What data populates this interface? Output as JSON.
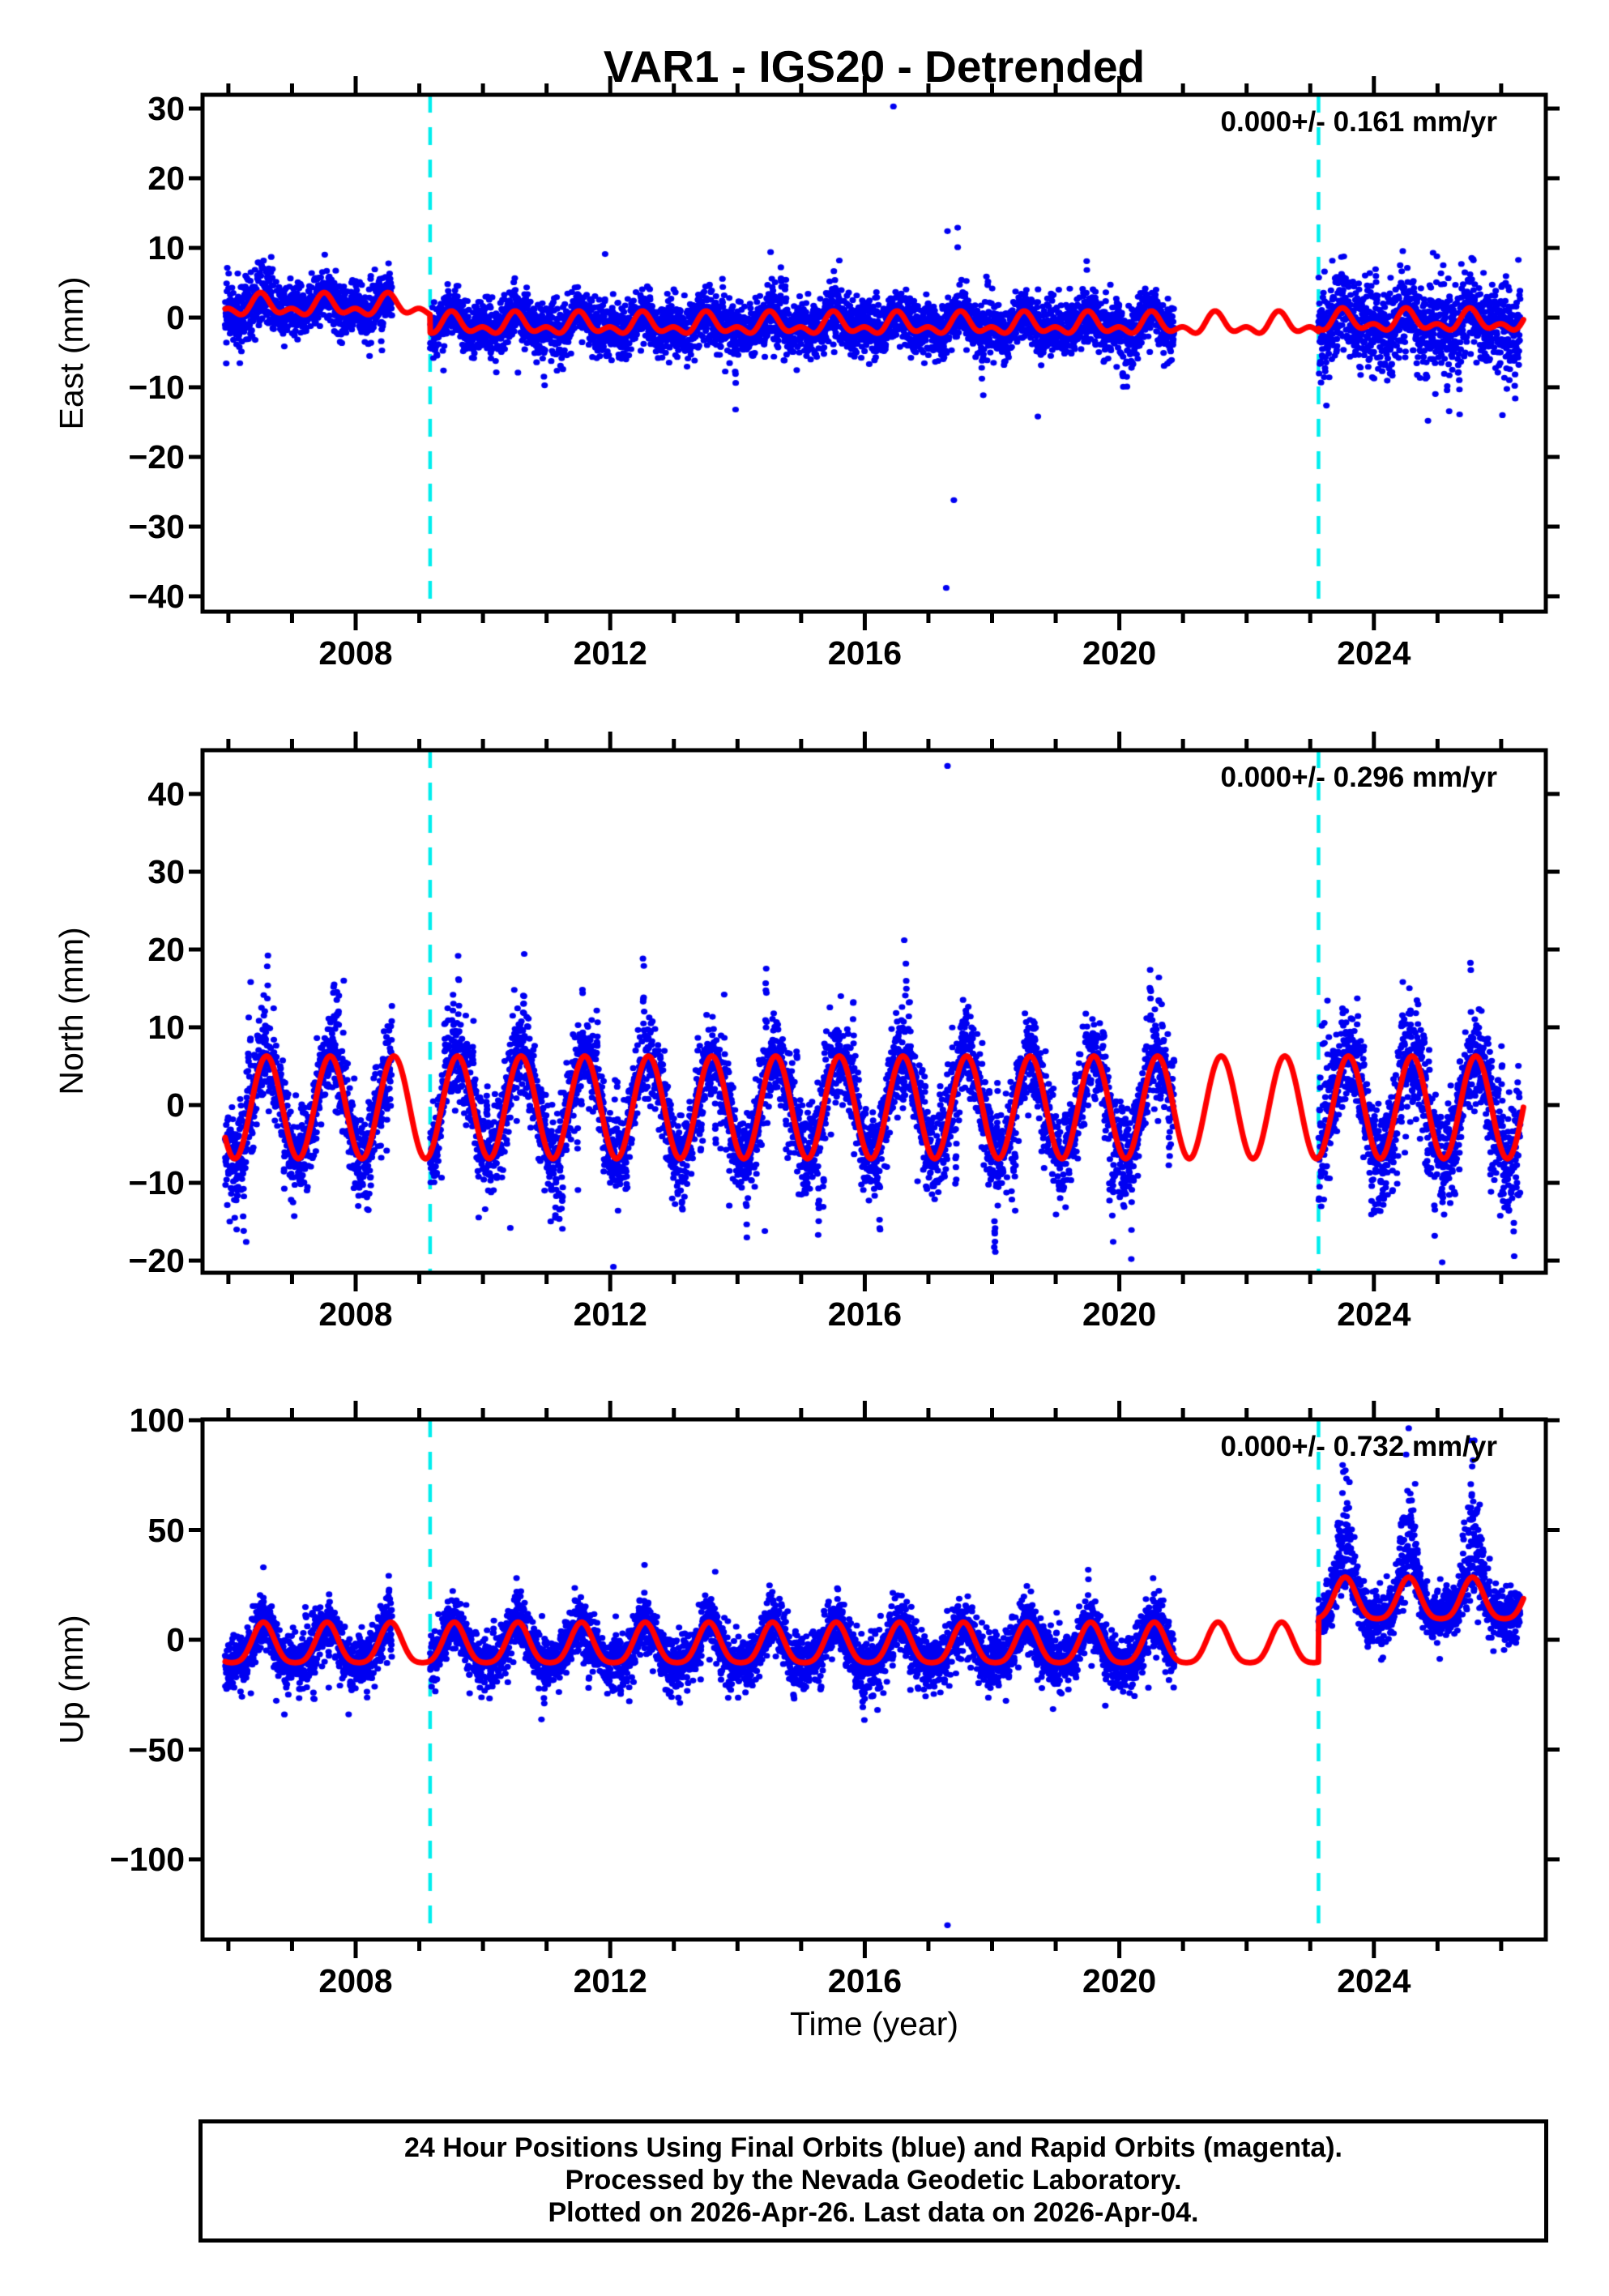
{
  "title": "VAR1 - IGS20 - Detrended",
  "xlabel": "Time (year)",
  "footer": {
    "line1": "24 Hour Positions Using Final Orbits (blue) and Rapid Orbits (magenta).",
    "line2": "Processed by the Nevada Geodetic Laboratory.",
    "line3": "Plotted on 2026-Apr-26. Last data on 2026-Apr-04."
  },
  "colors": {
    "points": "#0000f2",
    "model_line": "#ff0000",
    "event_line": "#00eeee",
    "frame": "#000000",
    "background": "#ffffff"
  },
  "chart_data": {
    "type": "scatter",
    "description": "GPS daily position time series, detrended, with seasonal model line (red), equipment-change event lines (dashed cyan) and daily solutions (blue dots).",
    "x_axis": {
      "label": "Time (year)",
      "range": [
        2005.6,
        2026.69
      ],
      "major_ticks": [
        2008,
        2012,
        2016,
        2020,
        2024
      ],
      "minor_tick_interval": 1
    },
    "event_lines": [
      2009.17,
      2023.13
    ],
    "data_gaps": [
      [
        2008.57,
        2009.17
      ],
      [
        2020.86,
        2023.13
      ]
    ],
    "data_span": [
      2005.95,
      2026.3
    ],
    "points_per_year": 365,
    "random_seed": 42,
    "panels": [
      {
        "name": "East",
        "ylabel": "East (mm)",
        "annotation": "0.000+/- 0.161 mm/yr",
        "y_range": [
          -42.2,
          32.0
        ],
        "y_ticks": [
          -40,
          -30,
          -20,
          -10,
          0,
          10,
          20,
          30
        ],
        "model": {
          "segments": [
            {
              "t": [
                2005.95,
                2009.17
              ],
              "mean": 1.6
            },
            {
              "t": [
                2009.17,
                2023.13
              ],
              "mean": -1.05
            },
            {
              "t": [
                2023.13,
                2026.35
              ],
              "mean": -0.6
            }
          ],
          "annual": {
            "amp": 1.15,
            "peak": 0.52
          },
          "semiannual": {
            "amp": 0.85,
            "peak": 0.5
          }
        },
        "noise": {
          "sd": 1.9,
          "sd_early": 2.4,
          "sd_post2023": 3.0,
          "excursion_rate": 0.004,
          "excursion_mag": [
            3,
            6
          ],
          "post2023_neg_rate": 0.1,
          "post2023_neg_mag": 8
        },
        "outliers": [
          [
            2016.45,
            30.3
          ],
          [
            2017.3,
            12.4
          ],
          [
            2017.46,
            12.9
          ],
          [
            2017.46,
            10.1
          ],
          [
            2014.52,
            9.4
          ],
          [
            2015.6,
            8.2
          ],
          [
            2017.28,
            -38.8
          ],
          [
            2017.4,
            -26.2
          ],
          [
            2018.72,
            -14.2
          ],
          [
            2013.97,
            -13.2
          ],
          [
            2009.38,
            -7.6
          ],
          [
            2010.55,
            -7.9
          ],
          [
            2024.85,
            -14.8
          ],
          [
            2026.02,
            -14.0
          ],
          [
            2024.93,
            9.3
          ],
          [
            2024.99,
            8.8
          ]
        ]
      },
      {
        "name": "North",
        "ylabel": "North (mm)",
        "annotation": "0.000+/- 0.296 mm/yr",
        "y_range": [
          -21.6,
          45.2
        ],
        "y_ticks": [
          -20,
          -10,
          0,
          10,
          20,
          30,
          40
        ],
        "model": {
          "segments": [
            {
              "t": [
                2005.95,
                2026.35
              ],
              "mean": -0.3
            }
          ],
          "annual": {
            "amp": 6.6,
            "peak": 0.6
          },
          "semiannual": {
            "amp": 0.0,
            "peak": 0.0
          }
        },
        "noise": {
          "sd": 2.7,
          "sd_post2023": 3.4,
          "excursion_rate": 0.02,
          "excursion_mag": [
            3.5,
            9.5
          ],
          "spike_2023": 17
        },
        "outliers": [
          [
            2017.3,
            43.6
          ],
          [
            2016.62,
            21.2
          ],
          [
            2012.05,
            -20.8
          ],
          [
            2006.28,
            -17.6
          ],
          [
            2010.43,
            -15.8
          ],
          [
            2014.43,
            -16.2
          ],
          [
            2026.12,
            -13.6
          ],
          [
            2008.2,
            -13.5
          ],
          [
            2006.1,
            -14.5
          ],
          [
            2006.13,
            -16.0
          ]
        ]
      },
      {
        "name": "Up",
        "ylabel": "Up (mm)",
        "annotation": "0.000+/- 0.732 mm/yr",
        "y_range": [
          -136.9,
          101.1
        ],
        "y_ticks": [
          -100,
          -50,
          0,
          50,
          100
        ],
        "model": {
          "segments": [
            {
              "t": [
                2005.95,
                2023.13
              ],
              "mean": -3.0,
              "annual": {
                "amp": 9.2,
                "peak": 0.55
              },
              "semiannual": {
                "amp": 1.8,
                "peak": 0.55
              }
            },
            {
              "t": [
                2023.13,
                2026.35
              ],
              "mean": 17.25,
              "annual": {
                "amp": 9.45,
                "peak": 0.55
              },
              "semiannual": {
                "amp": 1.8,
                "peak": 0.55
              }
            }
          ],
          "annual": {
            "amp": 9.2,
            "peak": 0.55
          },
          "semiannual": {
            "amp": 1.8,
            "peak": 0.55
          }
        },
        "noise": {
          "sd": 5.8,
          "sd_post2023": 6.0,
          "down_rate": 0.05,
          "down_mag": 14,
          "summer_tail": 26,
          "summer_tail_rate": 0.8,
          "excursion_rate": 0.01,
          "excursion_mag": [
            8,
            16
          ]
        },
        "outliers": [
          [
            2017.3,
            -130
          ],
          [
            2006.88,
            -34
          ],
          [
            2016.2,
            -32
          ],
          [
            2019.78,
            -30
          ],
          [
            2007.35,
            -27
          ],
          [
            2013.65,
            31
          ],
          [
            2006.55,
            33
          ],
          [
            2012.3,
            -28
          ]
        ]
      }
    ]
  }
}
